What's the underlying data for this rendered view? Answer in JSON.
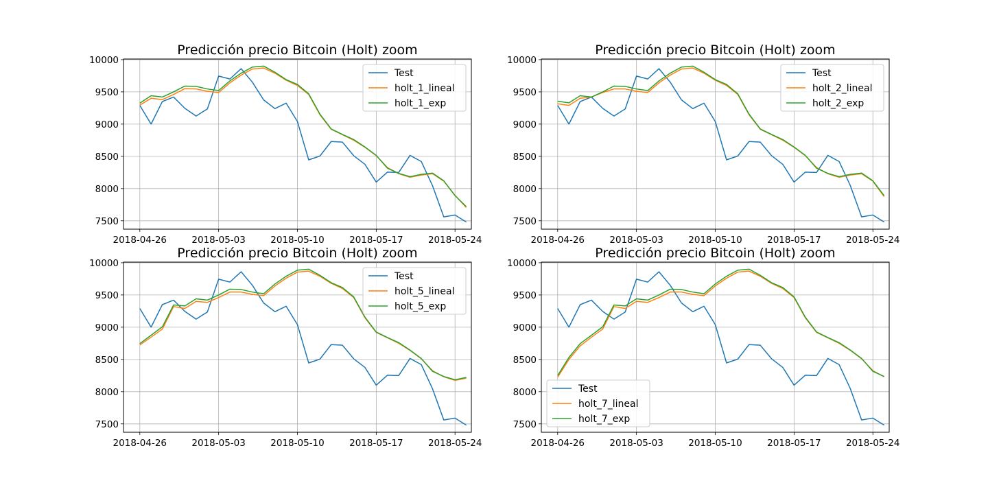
{
  "colors": {
    "test": "#1f77b4",
    "lineal": "#ff7f0e",
    "exp": "#2ca02c"
  },
  "chart_data": [
    {
      "type": "line",
      "title": "Predicción precio Bitcoin (Holt) zoom",
      "xticks": [
        "2018-04-26",
        "2018-05-03",
        "2018-05-10",
        "2018-05-17",
        "2018-05-24"
      ],
      "yticks": [
        "7500",
        "8000",
        "8500",
        "9000",
        "9500",
        "10000"
      ],
      "ylim": [
        7370,
        10010
      ],
      "x_start": "2018-04-26",
      "x_end": "2018-05-25",
      "legend_position": "upper right",
      "grid": true,
      "series": [
        {
          "name": "Test",
          "values": [
            9290,
            9000,
            9350,
            9420,
            9245,
            9125,
            9235,
            9745,
            9700,
            9860,
            9650,
            9375,
            9240,
            9325,
            9040,
            8445,
            8505,
            8730,
            8720,
            8510,
            8375,
            8100,
            8255,
            8250,
            8515,
            8420,
            8045,
            7560,
            7590,
            7480
          ]
        },
        {
          "name": "holt_1_lineal",
          "values": [
            9295,
            9400,
            9380,
            9460,
            9550,
            9545,
            9510,
            9490,
            9640,
            9760,
            9855,
            9870,
            9790,
            9680,
            9600,
            9460,
            9145,
            8920,
            8835,
            8750,
            8640,
            8510,
            8325,
            8230,
            8175,
            8210,
            8230,
            8115,
            7895,
            7705
          ]
        },
        {
          "name": "holt_1_exp",
          "values": [
            9325,
            9440,
            9420,
            9500,
            9590,
            9585,
            9545,
            9520,
            9670,
            9790,
            9885,
            9900,
            9805,
            9690,
            9615,
            9470,
            9155,
            8925,
            8840,
            8760,
            8645,
            8515,
            8315,
            8235,
            8185,
            8220,
            8240,
            8120,
            7890,
            7720
          ]
        }
      ]
    },
    {
      "type": "line",
      "title": "Predicción precio Bitcoin (Holt) zoom",
      "xticks": [
        "2018-04-26",
        "2018-05-03",
        "2018-05-10",
        "2018-05-17",
        "2018-05-24"
      ],
      "yticks": [
        "7500",
        "8000",
        "8500",
        "9000",
        "9500",
        "10000"
      ],
      "ylim": [
        7370,
        10010
      ],
      "x_start": "2018-04-26",
      "x_end": "2018-05-25",
      "legend_position": "upper right",
      "grid": true,
      "series": [
        {
          "name": "Test",
          "values": [
            9290,
            9000,
            9350,
            9420,
            9245,
            9125,
            9235,
            9745,
            9700,
            9860,
            9650,
            9375,
            9240,
            9325,
            9040,
            8445,
            8505,
            8730,
            8720,
            8510,
            8375,
            8100,
            8255,
            8250,
            8515,
            8420,
            8045,
            7560,
            7590,
            7480
          ]
        },
        {
          "name": "holt_2_lineal",
          "values": [
            9315,
            9290,
            9400,
            9420,
            9490,
            9545,
            9545,
            9510,
            9490,
            9640,
            9760,
            9855,
            9870,
            9790,
            9680,
            9600,
            9460,
            9145,
            8920,
            8835,
            8750,
            8640,
            8510,
            8325,
            8230,
            8175,
            8210,
            8230,
            8115,
            7875
          ]
        },
        {
          "name": "holt_2_exp",
          "values": [
            9355,
            9330,
            9440,
            9420,
            9500,
            9590,
            9585,
            9545,
            9520,
            9670,
            9790,
            9885,
            9900,
            9805,
            9690,
            9615,
            9470,
            9155,
            8925,
            8840,
            8760,
            8645,
            8515,
            8315,
            8235,
            8185,
            8220,
            8240,
            8120,
            7890
          ]
        }
      ]
    },
    {
      "type": "line",
      "title": "Predicción precio Bitcoin (Holt) zoom",
      "xticks": [
        "2018-04-26",
        "2018-05-03",
        "2018-05-10",
        "2018-05-17",
        "2018-05-24"
      ],
      "yticks": [
        "7500",
        "8000",
        "8500",
        "9000",
        "9500",
        "10000"
      ],
      "ylim": [
        7370,
        10010
      ],
      "x_start": "2018-04-26",
      "x_end": "2018-05-25",
      "legend_position": "upper right",
      "grid": true,
      "series": [
        {
          "name": "Test",
          "values": [
            9290,
            9000,
            9350,
            9420,
            9245,
            9125,
            9235,
            9745,
            9700,
            9860,
            9650,
            9375,
            9240,
            9325,
            9040,
            8445,
            8505,
            8730,
            8720,
            8510,
            8375,
            8100,
            8255,
            8250,
            8515,
            8420,
            8045,
            7560,
            7590,
            7480
          ]
        },
        {
          "name": "holt_5_lineal",
          "values": [
            8725,
            8845,
            8970,
            9320,
            9290,
            9400,
            9385,
            9460,
            9545,
            9545,
            9510,
            9490,
            9640,
            9760,
            9855,
            9870,
            9790,
            9680,
            9600,
            9460,
            9145,
            8920,
            8835,
            8750,
            8640,
            8510,
            8325,
            8230,
            8175,
            8210
          ]
        },
        {
          "name": "holt_5_exp",
          "values": [
            8745,
            8875,
            9005,
            9345,
            9330,
            9440,
            9420,
            9500,
            9590,
            9585,
            9545,
            9520,
            9670,
            9790,
            9885,
            9900,
            9805,
            9690,
            9615,
            9470,
            9155,
            8925,
            8840,
            8760,
            8645,
            8515,
            8315,
            8235,
            8185,
            8220
          ]
        }
      ]
    },
    {
      "type": "line",
      "title": "Predicción precio Bitcoin (Holt) zoom",
      "xticks": [
        "2018-04-26",
        "2018-05-03",
        "2018-05-10",
        "2018-05-17",
        "2018-05-24"
      ],
      "yticks": [
        "7500",
        "8000",
        "8500",
        "9000",
        "9500",
        "10000"
      ],
      "ylim": [
        7370,
        10010
      ],
      "x_start": "2018-04-26",
      "x_end": "2018-05-25",
      "legend_position": "lower left",
      "grid": true,
      "series": [
        {
          "name": "Test",
          "values": [
            9290,
            9000,
            9350,
            9420,
            9245,
            9125,
            9235,
            9745,
            9700,
            9860,
            9650,
            9375,
            9240,
            9325,
            9040,
            8445,
            8505,
            8730,
            8720,
            8510,
            8375,
            8100,
            8255,
            8250,
            8515,
            8420,
            8045,
            7560,
            7590,
            7480
          ]
        },
        {
          "name": "holt_7_lineal",
          "values": [
            8225,
            8500,
            8710,
            8845,
            8970,
            9320,
            9290,
            9400,
            9385,
            9460,
            9545,
            9545,
            9510,
            9490,
            9640,
            9760,
            9855,
            9870,
            9790,
            9680,
            9600,
            9460,
            9145,
            8920,
            8835,
            8750,
            8640,
            8510,
            8325,
            8230
          ]
        },
        {
          "name": "holt_7_exp",
          "values": [
            8250,
            8530,
            8745,
            8875,
            9005,
            9345,
            9330,
            9440,
            9420,
            9500,
            9590,
            9585,
            9545,
            9520,
            9670,
            9790,
            9885,
            9900,
            9805,
            9690,
            9615,
            9470,
            9155,
            8925,
            8840,
            8760,
            8645,
            8515,
            8315,
            8235
          ]
        }
      ]
    }
  ]
}
